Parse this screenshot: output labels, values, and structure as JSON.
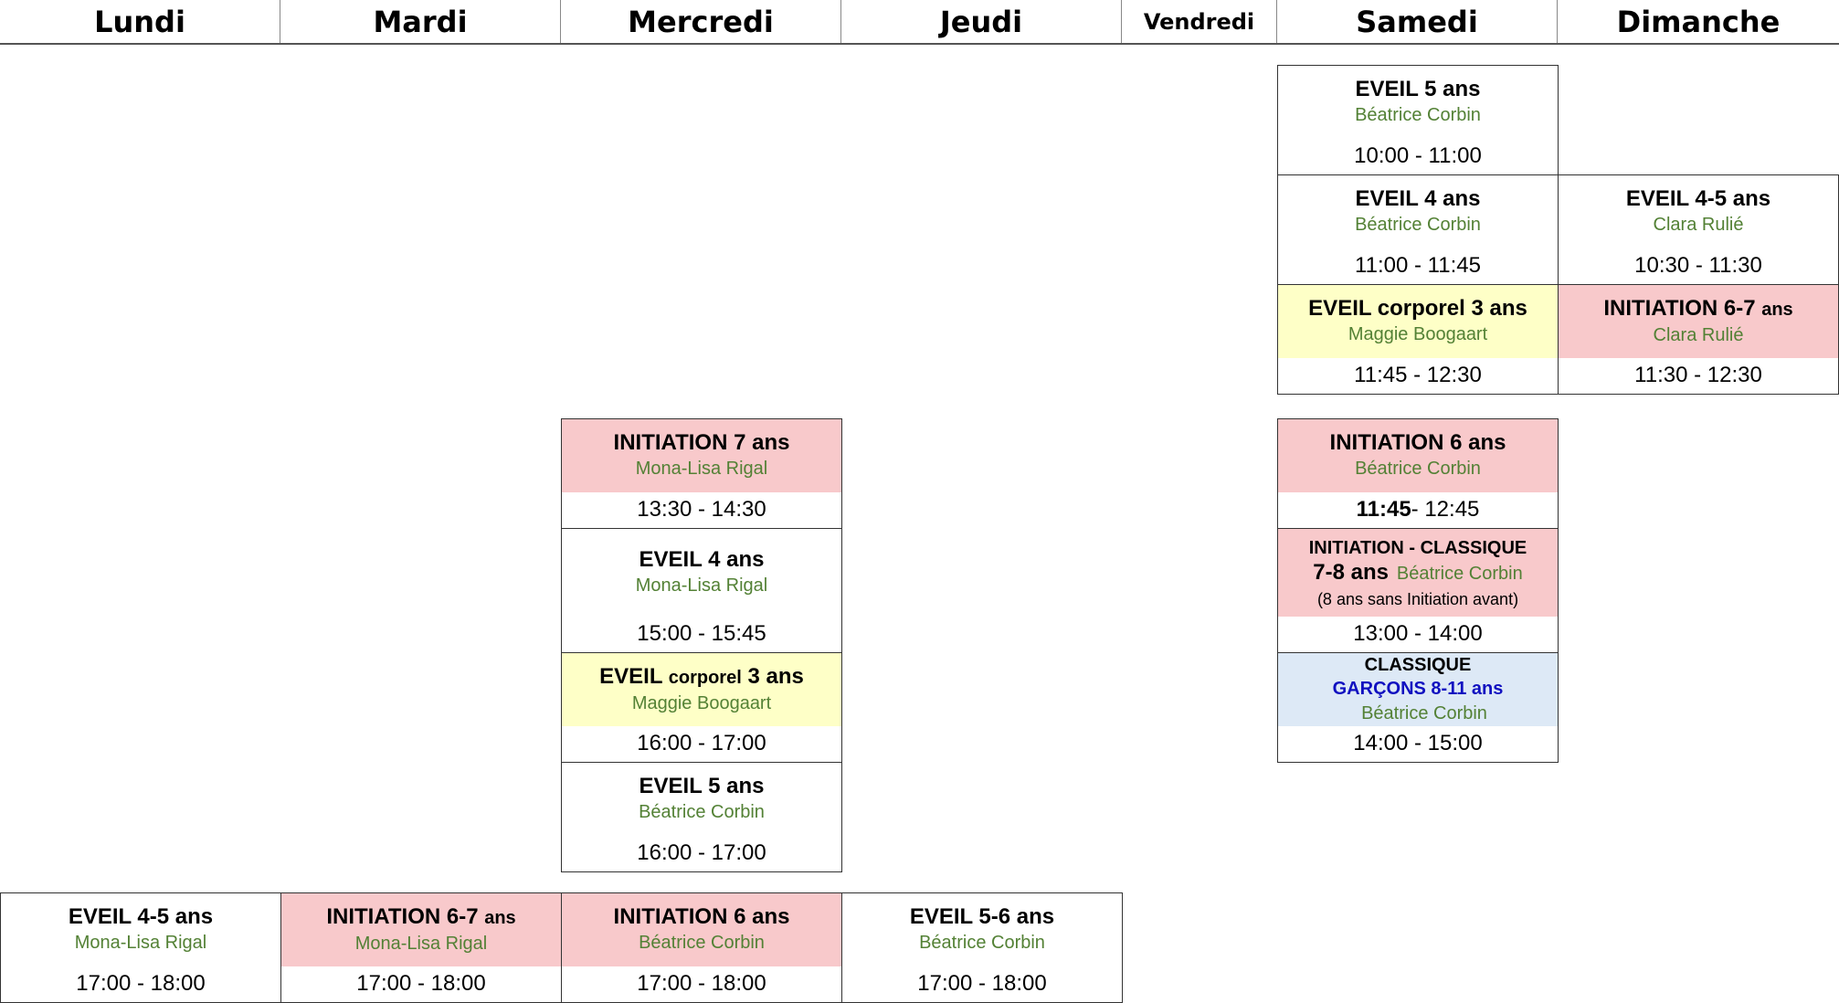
{
  "days": [
    "Lundi",
    "Mardi",
    "Mercredi",
    "Jeudi",
    "Vendredi",
    "Samedi",
    "Dimanche"
  ],
  "classes": {
    "sam1": {
      "title": "EVEIL  5 ans",
      "teacher": "Béatrice Corbin",
      "time": "10:00 - 11:00"
    },
    "sam2": {
      "title": "EVEIL  4 ans",
      "teacher": "Béatrice Corbin",
      "time": "11:00 - 11:45"
    },
    "sam3": {
      "title_main": "EVEIL corporel 3 ans",
      "teacher": "Maggie Boogaart",
      "time": "11:45 - 12:30"
    },
    "dim1": {
      "title": "EVEIL  4-5 ans",
      "teacher": "Clara Rulié",
      "time": "10:30 - 11:30"
    },
    "dim2": {
      "title_main": "INITIATION  6-7",
      "title_small": "ans",
      "teacher": "Clara Rulié",
      "time": "11:30 - 12:30"
    },
    "mer1": {
      "title": "INITIATION  7 ans",
      "teacher": "Mona-Lisa Rigal",
      "time": "13:30 - 14:30"
    },
    "mer2": {
      "title": "EVEIL  4 ans",
      "teacher": "Mona-Lisa Rigal",
      "time": "15:00 - 15:45"
    },
    "mer3": {
      "title_a": "EVEIL",
      "title_b": "corporel",
      "title_c": "3 ans",
      "teacher": "Maggie Boogaart",
      "time": "16:00 - 17:00"
    },
    "mer4": {
      "title": "EVEIL 5 ans",
      "teacher": "Béatrice Corbin",
      "time": "16:00 - 17:00"
    },
    "sam4": {
      "title": "INITIATION  6 ans",
      "teacher": "Béatrice Corbin",
      "time_start": "11:45",
      "time_end": " - 12:45"
    },
    "sam5": {
      "title": "INITIATION - CLASSIQUE",
      "age": "7-8 ans",
      "teacher": "Béatrice Corbin",
      "note": "(8 ans sans Initiation avant)",
      "time": "13:00 - 14:00"
    },
    "sam6": {
      "title": "CLASSIQUE",
      "subtitle": "GARÇONS  8-11 ans",
      "teacher": "Béatrice Corbin",
      "time": "14:00 - 15:00"
    },
    "lun1": {
      "title": "EVEIL  4-5 ans",
      "teacher": "Mona-Lisa Rigal",
      "time": "17:00 - 18:00"
    },
    "mar1": {
      "title_main": "INITIATION  6-7",
      "title_small": "ans",
      "teacher": "Mona-Lisa Rigal",
      "time": "17:00 - 18:00"
    },
    "mer5": {
      "title": "INITIATION  6 ans",
      "teacher": "Béatrice Corbin",
      "time": "17:00 - 18:00"
    },
    "jeu1": {
      "title": "EVEIL 5-6 ans",
      "teacher": "Béatrice Corbin",
      "time": "17:00 - 18:00"
    }
  },
  "colors": {
    "pink": "#f8c9cb",
    "yellow": "#feffc7",
    "blue": "#dde9f6",
    "teacher_green": "#538135",
    "boys_blue": "#1010c0"
  }
}
